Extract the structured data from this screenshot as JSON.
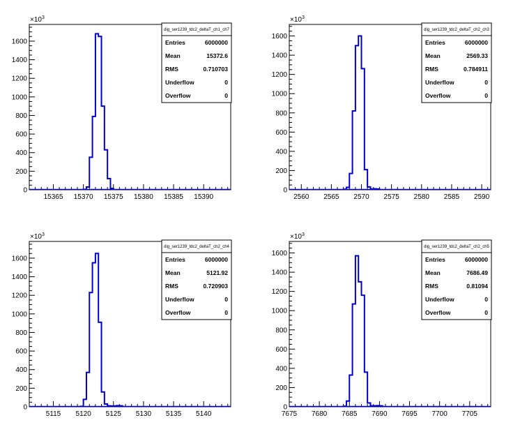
{
  "chart_data": [
    {
      "type": "bar",
      "title": "dig_ser1239_tdc2_deltaT_ch1_ch7",
      "exponent_label": "10",
      "exponent_power": "3",
      "xlim": [
        15361.0,
        15394.5
      ],
      "ylim": [
        0,
        1780
      ],
      "xticks": [
        15365,
        15370,
        15375,
        15380,
        15385,
        15390
      ],
      "yticks": [
        0,
        200,
        400,
        600,
        800,
        1000,
        1200,
        1400,
        1600
      ],
      "bin_width": 0.5,
      "bins_x": [
        15370.0,
        15370.5,
        15371.0,
        15371.5,
        15372.0,
        15372.5,
        15373.0,
        15373.5,
        15374.0,
        15374.5
      ],
      "values": [
        5,
        30,
        350,
        790,
        1680,
        1650,
        900,
        430,
        120,
        15
      ],
      "stats": [
        {
          "label": "Entries",
          "value": "6000000"
        },
        {
          "label": "Mean",
          "value": "15372.6"
        },
        {
          "label": "RMS",
          "value": "0.710703"
        },
        {
          "label": "Underflow",
          "value": "0"
        },
        {
          "label": "Overflow",
          "value": "0"
        }
      ],
      "line_color": "#0000cc"
    },
    {
      "type": "bar",
      "title": "dig_ser1239_tdc2_deltaT_ch2_ch3",
      "exponent_label": "10",
      "exponent_power": "3",
      "xlim": [
        2558.0,
        2591.5
      ],
      "ylim": [
        0,
        1720
      ],
      "xticks": [
        2560,
        2565,
        2570,
        2575,
        2580,
        2585,
        2590
      ],
      "yticks": [
        0,
        200,
        400,
        600,
        800,
        1000,
        1200,
        1400,
        1600
      ],
      "bin_width": 0.5,
      "bins_x": [
        2567.0,
        2567.5,
        2568.0,
        2568.5,
        2569.0,
        2569.5,
        2570.0,
        2570.5,
        2571.0,
        2571.5,
        2572.0,
        2572.5
      ],
      "values": [
        5,
        25,
        170,
        820,
        1500,
        1600,
        1260,
        210,
        30,
        8,
        10,
        8
      ],
      "stats": [
        {
          "label": "Entries",
          "value": "6000000"
        },
        {
          "label": "Mean",
          "value": "2569.33"
        },
        {
          "label": "RMS",
          "value": "0.784911"
        },
        {
          "label": "Underflow",
          "value": "0"
        },
        {
          "label": "Overflow",
          "value": "0"
        }
      ],
      "line_color": "#0000cc"
    },
    {
      "type": "bar",
      "title": "dig_ser1239_tdc2_deltaT_ch2_ch4",
      "exponent_label": "10",
      "exponent_power": "3",
      "xlim": [
        5111.0,
        5144.5
      ],
      "ylim": [
        0,
        1780
      ],
      "xticks": [
        5115,
        5120,
        5125,
        5130,
        5135,
        5140
      ],
      "yticks": [
        0,
        200,
        400,
        600,
        800,
        1000,
        1200,
        1400,
        1600
      ],
      "bin_width": 0.5,
      "bins_x": [
        5119.5,
        5120.0,
        5120.5,
        5121.0,
        5121.5,
        5122.0,
        5122.5,
        5123.0,
        5123.5,
        5124.0,
        5124.5,
        5125.0,
        5125.5,
        5126.0
      ],
      "values": [
        5,
        80,
        370,
        1230,
        1550,
        1650,
        910,
        160,
        30,
        10,
        8,
        8,
        12,
        10
      ],
      "stats": [
        {
          "label": "Entries",
          "value": "6000000"
        },
        {
          "label": "Mean",
          "value": "5121.92"
        },
        {
          "label": "RMS",
          "value": "0.720903"
        },
        {
          "label": "Underflow",
          "value": "0"
        },
        {
          "label": "Overflow",
          "value": "0"
        }
      ],
      "line_color": "#0000cc"
    },
    {
      "type": "bar",
      "title": "dig_ser1239_tdc2_deltaT_ch2_ch5",
      "exponent_label": "10",
      "exponent_power": "3",
      "xlim": [
        7675.0,
        7708.5
      ],
      "ylim": [
        0,
        1720
      ],
      "xticks": [
        7675,
        7680,
        7685,
        7690,
        7695,
        7700,
        7705
      ],
      "yticks": [
        0,
        200,
        400,
        600,
        800,
        1000,
        1200,
        1400,
        1600
      ],
      "bin_width": 0.5,
      "bins_x": [
        7684.0,
        7684.5,
        7685.0,
        7685.5,
        7686.0,
        7686.5,
        7687.0,
        7687.5,
        7688.0,
        7688.5,
        7689.0,
        7689.5,
        7690.0
      ],
      "values": [
        5,
        60,
        330,
        1070,
        1570,
        1300,
        1160,
        360,
        40,
        10,
        10,
        12,
        10
      ],
      "stats": [
        {
          "label": "Entries",
          "value": "6000000"
        },
        {
          "label": "Mean",
          "value": "7686.49"
        },
        {
          "label": "RMS",
          "value": "0.81094"
        },
        {
          "label": "Underflow",
          "value": "0"
        },
        {
          "label": "Overflow",
          "value": "0"
        }
      ],
      "line_color": "#0000cc"
    }
  ]
}
